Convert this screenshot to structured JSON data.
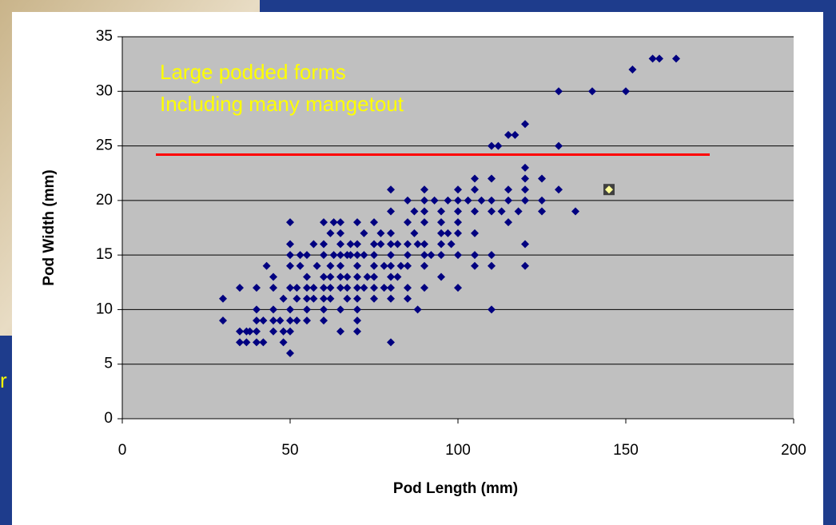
{
  "chart_data": {
    "type": "scatter",
    "xlabel": "Pod Length (mm)",
    "ylabel": "Pod Width (mm)",
    "annotations": [
      "Large podded forms",
      "Including many mangetout"
    ],
    "side_text": "r",
    "color": "#000080",
    "x": [
      30,
      30,
      35,
      35,
      35,
      37,
      37,
      38,
      40,
      40,
      40,
      40,
      40,
      42,
      42,
      43,
      45,
      45,
      45,
      45,
      45,
      47,
      48,
      48,
      48,
      50,
      50,
      50,
      50,
      50,
      50,
      50,
      50,
      50,
      52,
      52,
      52,
      53,
      53,
      55,
      55,
      55,
      55,
      55,
      55,
      57,
      57,
      57,
      58,
      60,
      60,
      60,
      60,
      60,
      60,
      60,
      60,
      62,
      62,
      62,
      62,
      62,
      63,
      63,
      65,
      65,
      65,
      65,
      65,
      65,
      65,
      65,
      65,
      67,
      67,
      67,
      67,
      68,
      68,
      70,
      70,
      70,
      70,
      70,
      70,
      70,
      70,
      70,
      70,
      72,
      72,
      72,
      73,
      75,
      75,
      75,
      75,
      75,
      75,
      75,
      77,
      77,
      78,
      78,
      80,
      80,
      80,
      80,
      80,
      80,
      80,
      80,
      80,
      80,
      82,
      82,
      83,
      85,
      85,
      85,
      85,
      85,
      85,
      85,
      87,
      87,
      88,
      88,
      90,
      90,
      90,
      90,
      90,
      90,
      90,
      90,
      92,
      93,
      95,
      95,
      95,
      95,
      95,
      95,
      97,
      97,
      98,
      100,
      100,
      100,
      100,
      100,
      100,
      100,
      103,
      105,
      105,
      105,
      105,
      105,
      105,
      107,
      110,
      110,
      110,
      110,
      110,
      110,
      110,
      112,
      113,
      115,
      115,
      115,
      115,
      117,
      118,
      120,
      120,
      120,
      120,
      120,
      120,
      120,
      125,
      125,
      125,
      130,
      130,
      130,
      135,
      140,
      150,
      152,
      158,
      160,
      165
    ],
    "values": [
      11,
      9,
      12,
      8,
      7,
      8,
      7,
      8,
      12,
      10,
      9,
      8,
      7,
      9,
      7,
      14,
      13,
      12,
      10,
      9,
      8,
      9,
      11,
      8,
      7,
      18,
      16,
      15,
      14,
      12,
      10,
      9,
      8,
      6,
      12,
      11,
      9,
      15,
      14,
      15,
      13,
      12,
      11,
      10,
      9,
      16,
      12,
      11,
      14,
      18,
      16,
      15,
      13,
      12,
      11,
      10,
      9,
      17,
      14,
      13,
      12,
      11,
      18,
      15,
      18,
      17,
      16,
      15,
      14,
      13,
      12,
      10,
      8,
      15,
      13,
      12,
      11,
      16,
      15,
      18,
      16,
      15,
      14,
      13,
      12,
      11,
      10,
      9,
      8,
      17,
      15,
      12,
      13,
      18,
      16,
      15,
      14,
      13,
      12,
      11,
      17,
      16,
      14,
      12,
      21,
      19,
      17,
      16,
      15,
      14,
      13,
      12,
      11,
      7,
      16,
      13,
      14,
      20,
      18,
      16,
      15,
      14,
      12,
      11,
      19,
      17,
      16,
      10,
      21,
      20,
      19,
      18,
      16,
      15,
      14,
      12,
      15,
      20,
      19,
      18,
      17,
      16,
      15,
      13,
      20,
      17,
      16,
      21,
      20,
      19,
      18,
      17,
      15,
      12,
      20,
      22,
      21,
      19,
      17,
      15,
      14,
      20,
      25,
      22,
      20,
      19,
      15,
      14,
      10,
      25,
      19,
      26,
      21,
      20,
      18,
      26,
      19,
      27,
      23,
      22,
      21,
      20,
      16,
      14,
      22,
      20,
      19,
      30,
      25,
      21,
      19,
      30,
      30,
      32,
      33,
      33,
      33
    ],
    "highlight": {
      "x": 145,
      "y": 21,
      "color": "#ffff99"
    },
    "reference_line": {
      "x": [
        10,
        175
      ],
      "y": 24.2,
      "color": "#ff0000"
    },
    "xlim": [
      0,
      200
    ],
    "xticks": [
      0,
      50,
      100,
      150,
      200
    ],
    "ylim": [
      0,
      35
    ],
    "yticks": [
      0,
      5,
      10,
      15,
      20,
      25,
      30,
      35
    ],
    "grid": true
  }
}
